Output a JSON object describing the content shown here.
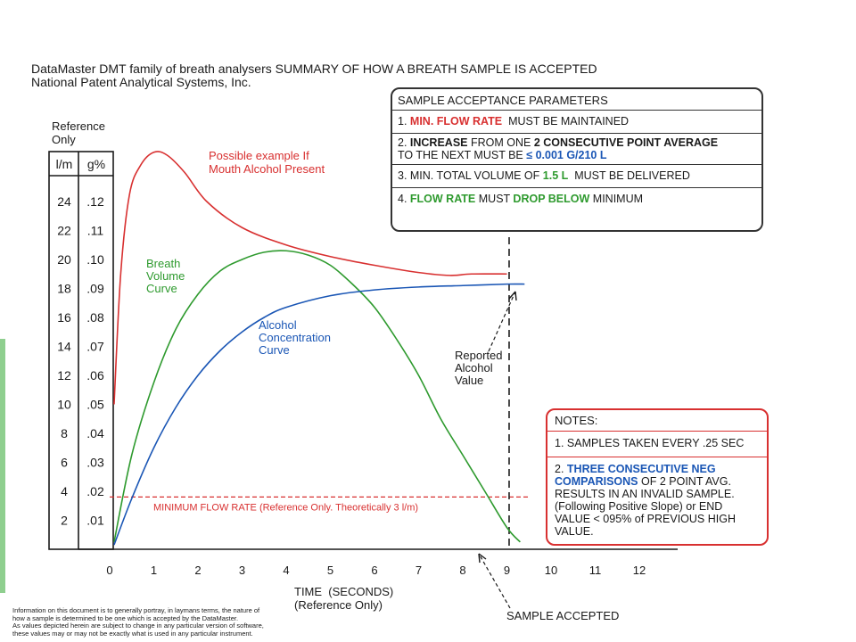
{
  "title": {
    "line1": "DataMaster DMT family of breath analysers SUMMARY OF HOW A BREATH SAMPLE IS ACCEPTED",
    "line2": "National Patent Analytical Systems, Inc."
  },
  "reference_note": [
    "Reference",
    "Only"
  ],
  "parameters_box": {
    "header": "SAMPLE ACCEPTANCE PARAMETERS",
    "item1": {
      "pre": "1. ",
      "hl": "MIN. FLOW RATE",
      "post": "  MUST BE MAINTAINED"
    },
    "item2": {
      "pre": "2. ",
      "b1": "INCREASE",
      "mid": " FROM ONE ",
      "b2": "2 CONSECUTIVE POINT AVERAGE",
      "line2": "TO THE NEXT MUST BE ",
      "hl": "≤ 0.001 G/210 L"
    },
    "item3": {
      "pre": "3. MIN. TOTAL VOLUME OF ",
      "hl": "1.5 L",
      "post": "  MUST BE DELIVERED"
    },
    "item4": {
      "pre": "4. ",
      "hl1": "FLOW RATE",
      "mid": " MUST ",
      "hl2": "DROP BELOW",
      "post": " MINIMUM"
    }
  },
  "notes_box": {
    "header": "NOTES:",
    "note1": "1. SAMPLES TAKEN EVERY .25 SEC",
    "note2_pre": "2. ",
    "note2_hl": "THREE CONSECUTIVE NEG COMPARISONS",
    "note2_rest": " OF 2 POINT AVG. RESULTS IN AN  INVALID SAMPLE. (Following Positive Slope) or END VALUE < 095% of PREVIOUS HIGH VALUE."
  },
  "x_axis_label": [
    "TIME  (SECONDS)",
    "(Reference Only)"
  ],
  "sample_accepted_label": "SAMPLE ACCEPTED",
  "footer": [
    "Information on this document is to generally portray, in laymans terms, the nature of",
    "how a sample is determined to be one which is accepted by the DataMaster.",
    "As values depicted herein are subject to change in any particular version of software,",
    "these values may or may not be exactly what is used in any particular instrument."
  ],
  "colors": {
    "red": "#d83030",
    "green": "#2e9a2e",
    "blue": "#1a56b5",
    "ink": "#1a1a1a"
  },
  "chart_data": {
    "type": "line",
    "x_ticks": [
      "0",
      "1",
      "2",
      "3",
      "4",
      "5",
      "6",
      "7",
      "8",
      "9",
      "10",
      "11",
      "12"
    ],
    "xlim": [
      0,
      12.6
    ],
    "ylim": [
      0,
      26
    ],
    "y_table_headers": [
      "l/m",
      "g%"
    ],
    "y_left_ticks": [
      "2",
      "4",
      "6",
      "8",
      "10",
      "12",
      "14",
      "16",
      "18",
      "20",
      "22",
      "24"
    ],
    "y_right_ticks": [
      ".01",
      ".02",
      ".03",
      ".04",
      ".05",
      ".06",
      ".07",
      ".08",
      ".09",
      ".10",
      ".11",
      ".12"
    ],
    "series": [
      {
        "name_lines": [
          "Possible example If",
          "Mouth Alcohol Present"
        ],
        "color": "#d83030",
        "x": [
          0.1,
          0.25,
          0.45,
          0.7,
          1.0,
          1.3,
          1.7,
          2.2,
          3.0,
          4.0,
          5.0,
          6.0,
          7.0,
          7.7,
          8.2,
          9.0
        ],
        "y": [
          10,
          19,
          24.5,
          26.5,
          27.4,
          27.2,
          26,
          24,
          22.2,
          21,
          20.2,
          19.6,
          19.1,
          18.9,
          19.0,
          19.0
        ]
      },
      {
        "name_lines": [
          "Breath",
          "Volume",
          "Curve"
        ],
        "color": "#2e9a2e",
        "x": [
          0.1,
          0.5,
          1.0,
          1.5,
          2.0,
          2.5,
          3.0,
          3.5,
          4.0,
          4.5,
          5.0,
          5.5,
          6.0,
          6.5,
          7.0,
          7.5,
          8.0,
          8.5,
          9.0,
          9.3
        ],
        "y": [
          0.5,
          6.5,
          11.5,
          15.2,
          17.6,
          19.2,
          20.0,
          20.5,
          20.6,
          20.3,
          19.6,
          18.3,
          16.7,
          14.5,
          12.0,
          9.0,
          6.5,
          4.0,
          1.5,
          0.5
        ]
      },
      {
        "name_lines": [
          "Alcohol",
          "Concentration",
          "Curve"
        ],
        "color": "#1a56b5",
        "x": [
          0.1,
          0.5,
          1.0,
          1.5,
          2.0,
          2.5,
          3.0,
          3.5,
          4.0,
          5.0,
          6.0,
          7.0,
          8.0,
          9.0,
          9.4
        ],
        "y": [
          0.3,
          3.5,
          7.0,
          9.8,
          12.0,
          13.7,
          15.0,
          16.0,
          16.7,
          17.5,
          17.9,
          18.1,
          18.2,
          18.3,
          18.3
        ]
      }
    ],
    "minimum_flow_rate": {
      "y": 2.5,
      "label": "MINIMUM FLOW RATE (Reference Only. Theoretically 3 l/m)"
    },
    "sample_accepted_x": 9.05,
    "annotations": {
      "reported_value": [
        "Reported",
        "Alcohol",
        "Value"
      ]
    }
  }
}
